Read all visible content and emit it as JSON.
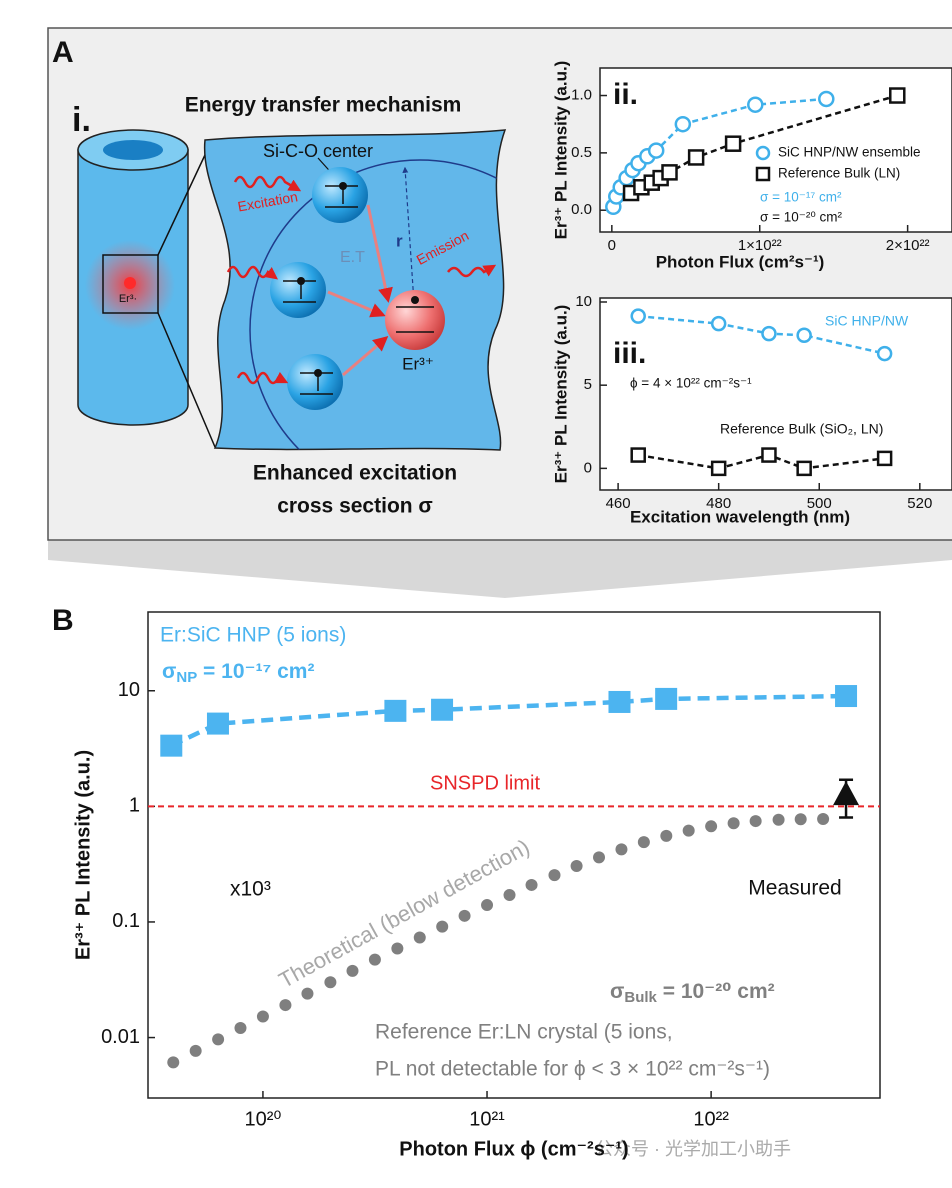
{
  "panel_labels": [
    "A",
    "B"
  ],
  "diagram": {
    "label": "i.",
    "title": "Energy transfer mechanism",
    "center": "Si-C-O center",
    "excitation": "Excitation",
    "transfer": "E.T",
    "distance": "r",
    "emission": "Emission",
    "ion": "Er³⁺",
    "ion_small": "Er³·",
    "caption_1": "Enhanced excitation",
    "caption_2": "cross section σ"
  },
  "chart_data": [
    {
      "type": "scatter",
      "panel": "ii.",
      "xlabel": "Photon Flux (cm²s⁻¹)",
      "ylabel": "Er³⁺ PL Intensity (a.u.)",
      "xlim": [
        -8e+20,
        2.3e+22
      ],
      "ylim": [
        -0.19,
        1.24
      ],
      "xticks": [
        0,
        {
          "value": 1e+22,
          "label": "1×10²²"
        },
        {
          "value": 2e+22,
          "label": "2×10²²"
        }
      ],
      "yticks": [
        {
          "value": 0,
          "label": "0.0"
        },
        {
          "value": 0.5,
          "label": "0.5"
        },
        {
          "value": 1,
          "label": "1.0"
        }
      ],
      "legend": "right",
      "series": [
        {
          "name": "SiC HNP/NW ensemble",
          "color": "#3fb0ea",
          "marker": "circle-open",
          "line": "dashed",
          "x": [
            1e+20,
            3e+20,
            6e+20,
            1e+21,
            1.4e+21,
            1.8e+21,
            2.4e+21,
            3e+21,
            4.8e+21,
            9.7e+21,
            1.45e+22
          ],
          "values": [
            0.03,
            0.12,
            0.2,
            0.28,
            0.35,
            0.41,
            0.47,
            0.52,
            0.75,
            0.92,
            0.97
          ]
        },
        {
          "name": "Reference Bulk (LN)",
          "color": "#111111",
          "marker": "square-open",
          "line": "dashed",
          "x": [
            1.3e+21,
            2e+21,
            2.7e+21,
            3.3e+21,
            3.9e+21,
            5.7e+21,
            8.2e+21,
            1.93e+22
          ],
          "values": [
            0.15,
            0.2,
            0.24,
            0.28,
            0.33,
            0.46,
            0.58,
            1.0
          ]
        }
      ],
      "annotations": [
        "σ = 10⁻¹⁷ cm²",
        "σ = 10⁻²⁰ cm²"
      ]
    },
    {
      "type": "scatter",
      "panel": "iii.",
      "xlabel": "Excitation wavelength (nm)",
      "ylabel": "Er³⁺ PL Intensity (a.u.)",
      "xlim": [
        456.4,
        526.4
      ],
      "ylim": [
        -1.3,
        10.24
      ],
      "xticks": [
        460,
        480,
        500,
        520
      ],
      "yticks": [
        0,
        5,
        10
      ],
      "legend": "direct",
      "series": [
        {
          "name": "SiC HNP/NW",
          "color": "#3fb0ea",
          "marker": "circle-open",
          "line": "dashed",
          "x": [
            464,
            480,
            490,
            497,
            513
          ],
          "values": [
            9.15,
            8.7,
            8.1,
            8.0,
            6.9
          ]
        },
        {
          "name": "Reference Bulk (SiO₂, LN)",
          "color": "#111111",
          "marker": "square-open",
          "line": "dashed",
          "x": [
            464,
            480,
            490,
            497,
            513
          ],
          "values": [
            0.8,
            0,
            0.8,
            0,
            0.6
          ]
        }
      ],
      "annotations": [
        "ϕ = 4 × 10²² cm⁻²s⁻¹"
      ]
    },
    {
      "type": "scatter",
      "xlabel": "Photon Flux ϕ (cm⁻²s⁻¹)",
      "ylabel": "Er³⁺ PL Intensity (a.u.)",
      "xscale": "log",
      "yscale": "log",
      "xlim": [
        3.07e+19,
        5.67e+22
      ],
      "ylim": [
        0.003,
        48
      ],
      "xticks": [
        {
          "value": 1e+20,
          "label": "10²⁰"
        },
        {
          "value": 1e+21,
          "label": "10²¹"
        },
        {
          "value": 1e+22,
          "label": "10²²"
        }
      ],
      "yticks": [
        0.01,
        0.1,
        1,
        10
      ],
      "legend": "direct",
      "series": [
        {
          "name": "Er:SiC HNP (5 ions)",
          "color": "#4cb4f0",
          "marker": "square",
          "line": "dashed",
          "x": [
            3.9e+19,
            6.3e+19,
            3.9e+20,
            6.3e+20,
            3.9e+21,
            6.3e+21,
            4e+22
          ],
          "values": [
            3.35,
            5.2,
            6.7,
            6.85,
            8.0,
            8.5,
            9.0
          ]
        },
        {
          "name": "Theoretical (below detection)",
          "color": "#7f7f7f",
          "marker": "dot",
          "x": [
            3.98e+19,
            5.01e+19,
            6.31e+19,
            7.94e+19,
            1e+20,
            1.26e+20,
            1.58e+20,
            2e+20,
            2.51e+20,
            3.16e+20,
            3.98e+20,
            5.01e+20,
            6.31e+20,
            7.94e+20,
            1e+21,
            1.26e+21,
            1.58e+21,
            2e+21,
            2.51e+21,
            3.16e+21,
            3.98e+21,
            5.01e+21,
            6.31e+21,
            7.94e+21,
            1e+22,
            1.26e+22,
            1.58e+22,
            2e+22,
            2.51e+22,
            3.16e+22
          ],
          "values": [
            0.0061,
            0.00767,
            0.00964,
            0.0121,
            0.0152,
            0.0191,
            0.024,
            0.0301,
            0.0377,
            0.0472,
            0.0589,
            0.0734,
            0.0912,
            0.113,
            0.14,
            0.171,
            0.209,
            0.254,
            0.305,
            0.362,
            0.424,
            0.49,
            0.555,
            0.617,
            0.672,
            0.715,
            0.746,
            0.765,
            0.774,
            0.778
          ]
        },
        {
          "name": "Measured",
          "color": "#111111",
          "marker": "triangle",
          "x": [
            4e+22
          ],
          "values": [
            1.25
          ],
          "errors": [
            0.45
          ]
        }
      ],
      "reference_line": {
        "value": 1,
        "label": "SNSPD limit",
        "color": "#e8262a"
      },
      "annotations": [
        "x10³",
        "Reference Er:LN crystal (5 ions,",
        "PL not detectable for  ϕ < 3 × 10²² cm⁻²s⁻¹)"
      ],
      "sigma_np": {
        "symbol": "σ",
        "sub": "NP",
        "rest": " = 10⁻¹⁷ cm²"
      },
      "sigma_bulk": {
        "symbol": "σ",
        "sub": "Bulk",
        "rest": " = 10⁻²⁰ cm²"
      }
    }
  ],
  "watermark": "公众号 · 光学加工小助手"
}
